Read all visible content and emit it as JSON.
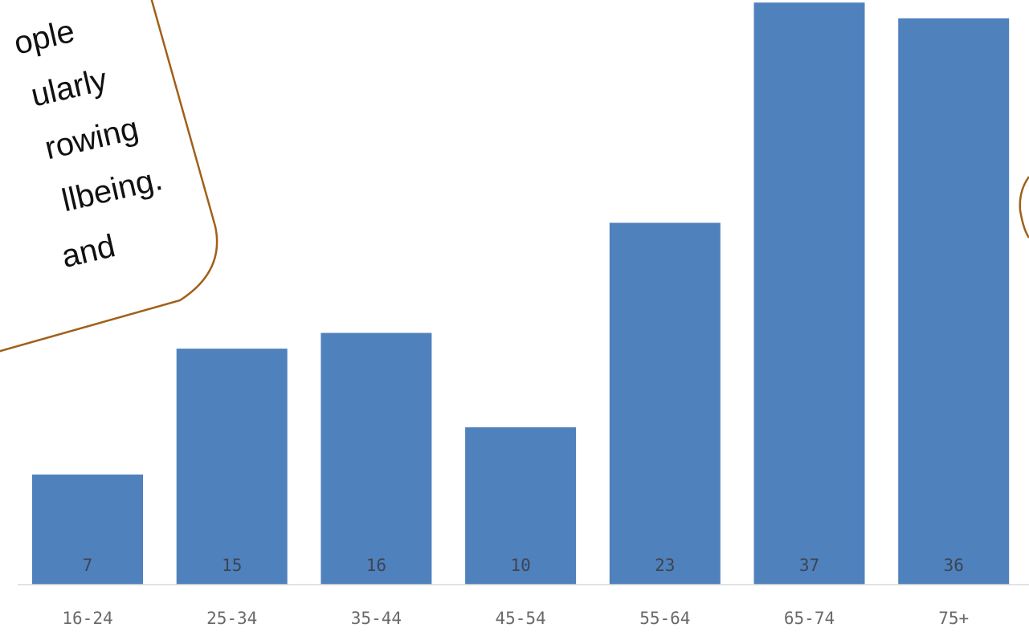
{
  "callout": {
    "lines": [
      "ople",
      "ularly",
      "rowing",
      "llbeing.",
      "and"
    ]
  },
  "colors": {
    "bar": "#4f81bd",
    "callout_border": "#a0601a",
    "axis": "#d9d9d9"
  },
  "chart_data": {
    "type": "bar",
    "categories": [
      "16-24",
      "25-34",
      "35-44",
      "45-54",
      "55-64",
      "65-74",
      "75+"
    ],
    "values": [
      7,
      15,
      16,
      10,
      23,
      37,
      36
    ],
    "title": "",
    "xlabel": "",
    "ylabel": "",
    "ylim": [
      0,
      36.5
    ],
    "grid": false,
    "legend": "none"
  }
}
